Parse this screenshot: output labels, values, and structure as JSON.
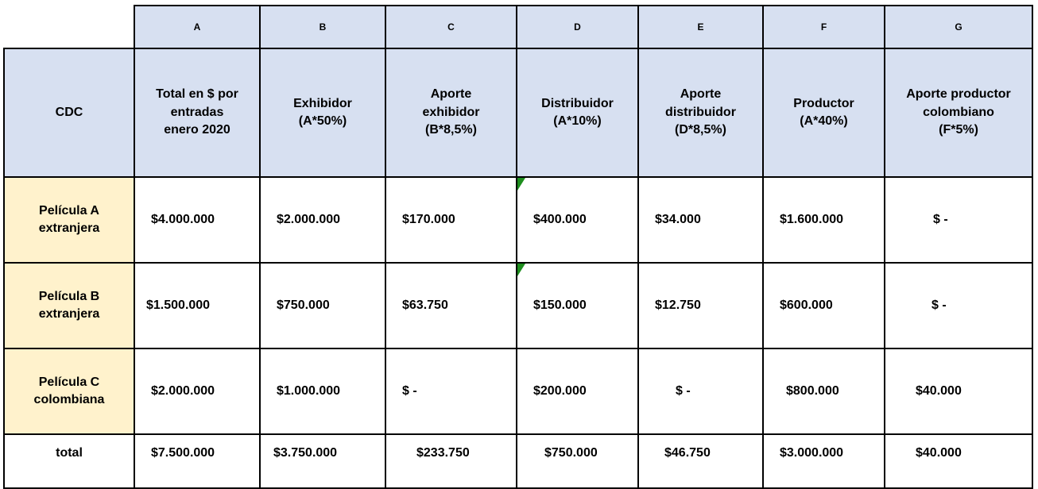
{
  "column_letters": [
    "A",
    "B",
    "C",
    "D",
    "E",
    "F",
    "G"
  ],
  "header": {
    "first": "CDC",
    "cols": [
      [
        "Total en $ por",
        "entradas",
        "enero 2020"
      ],
      [
        "Exhibidor",
        "(A*50%)"
      ],
      [
        "Aporte",
        "exhibidor",
        "(B*8,5%)"
      ],
      [
        "Distribuidor",
        "(A*10%)"
      ],
      [
        "Aporte",
        "distribuidor",
        "(D*8,5%)"
      ],
      [
        "Productor",
        "(A*40%)"
      ],
      [
        "Aporte productor",
        "colombiano",
        "(F*5%)"
      ]
    ]
  },
  "rows": [
    {
      "label": [
        "Película A",
        "extranjera"
      ],
      "values": [
        "$4.000.000",
        "$2.000.000",
        "$170.000",
        "$400.000",
        "$34.000",
        "$1.600.000",
        "$ -"
      ]
    },
    {
      "label": [
        "Película B",
        "extranjera"
      ],
      "values": [
        "$1.500.000",
        "$750.000",
        "$63.750",
        "$150.000",
        "$12.750",
        "$600.000",
        "$ -"
      ]
    },
    {
      "label": [
        "Película C",
        "colombiana"
      ],
      "values": [
        "$2.000.000",
        "$1.000.000",
        "$ -",
        "$200.000",
        "$ -",
        "$800.000",
        "$40.000"
      ]
    }
  ],
  "total": {
    "label": "total",
    "values": [
      "$7.500.000",
      "$3.750.000",
      "$233.750",
      "$750.000",
      "$46.750",
      "$3.000.000",
      "$40.000"
    ]
  }
}
